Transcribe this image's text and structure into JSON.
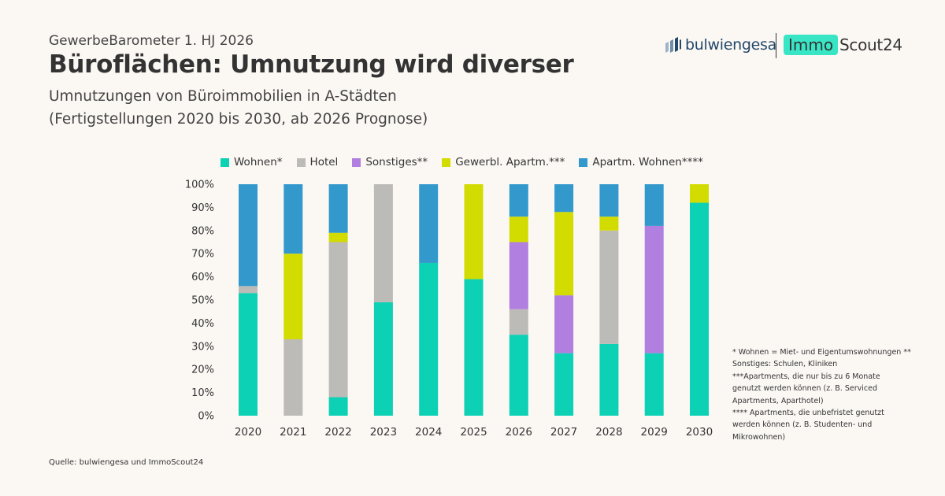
{
  "header": {
    "kicker": "GewerbeBarometer 1. HJ 2026",
    "title": "Büroflächen: Umnutzung wird diverser",
    "subtitle_line1": "Umnutzungen von Büroimmobilien in A-Städten",
    "subtitle_line2": "(Fertigstellungen 2020 bis 2030, ab 2026 Prognose)"
  },
  "logos": {
    "bulwiengesa": "bulwiengesa",
    "immo": "Immo",
    "scout": "Scout24",
    "bulwiengesa_color": "#23476a",
    "immo_color": "#38e6c6"
  },
  "chart_data": {
    "type": "bar",
    "stacked": true,
    "categories": [
      "2020",
      "2021",
      "2022",
      "2023",
      "2024",
      "2025",
      "2026",
      "2027",
      "2028",
      "2029",
      "2030"
    ],
    "series": [
      {
        "name": "Wohnen*",
        "color": "#0dd1b5",
        "values": [
          53,
          0,
          8,
          49,
          66,
          59,
          35,
          27,
          31,
          27,
          92
        ]
      },
      {
        "name": "Hotel",
        "color": "#bdbbb8",
        "values": [
          3,
          33,
          67,
          51,
          0,
          0,
          11,
          0,
          49,
          0,
          0
        ]
      },
      {
        "name": "Sonstiges**",
        "color": "#b07fdf",
        "values": [
          0,
          0,
          0,
          0,
          0,
          0,
          29,
          25,
          0,
          55,
          0
        ]
      },
      {
        "name": "Gewerbl. Apartm.***",
        "color": "#d3dc00",
        "values": [
          0,
          37,
          4,
          0,
          0,
          41,
          11,
          36,
          6,
          0,
          8
        ]
      },
      {
        "name": "Apartm. Wohnen****",
        "color": "#3399cc",
        "values": [
          44,
          30,
          21,
          0,
          34,
          0,
          14,
          12,
          14,
          18,
          0
        ]
      }
    ],
    "yticks": [
      "0%",
      "10%",
      "20%",
      "30%",
      "40%",
      "50%",
      "60%",
      "70%",
      "80%",
      "90%",
      "100%"
    ],
    "ylim": [
      0,
      100
    ],
    "grid": false,
    "legend_position": "top"
  },
  "footnotes": [
    "* Wohnen = Miet- und Eigentumswohnungen **",
    "Sonstiges: Schulen, Kliniken",
    "***Apartments, die nur bis zu 6 Monate",
    "genutzt werden können (z. B. Serviced",
    "Apartments, Aparthotel)",
    "**** Apartments, die unbefristet genutzt",
    "werden können (z. B. Studenten- und",
    "Mikrowohnen)"
  ],
  "source": "Quelle: bulwiengesa und ImmoScout24"
}
